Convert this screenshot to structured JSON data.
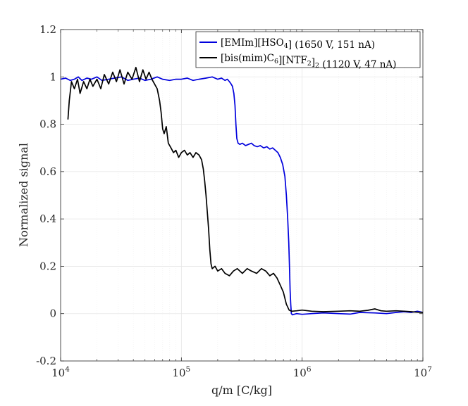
{
  "chart_data": {
    "type": "line",
    "xscale": "log",
    "xlim": [
      10000,
      10000000
    ],
    "ylim": [
      -0.2,
      1.2
    ],
    "grid": true,
    "legend_position": "top-right",
    "xlabel": "q/m [C/kg]",
    "ylabel": "Normalized signal",
    "x_ticks": [
      {
        "value": 10000,
        "base": "10",
        "exp": "4"
      },
      {
        "value": 100000,
        "base": "10",
        "exp": "5"
      },
      {
        "value": 1000000,
        "base": "10",
        "exp": "6"
      },
      {
        "value": 10000000,
        "base": "10",
        "exp": "7"
      }
    ],
    "y_ticks": [
      {
        "value": -0.2,
        "label": "-0.2"
      },
      {
        "value": 0,
        "label": "0"
      },
      {
        "value": 0.2,
        "label": "0.2"
      },
      {
        "value": 0.4,
        "label": "0.4"
      },
      {
        "value": 0.6,
        "label": "0.6"
      },
      {
        "value": 0.8,
        "label": "0.8"
      },
      {
        "value": 1,
        "label": "1"
      },
      {
        "value": 1.2,
        "label": "1.2"
      }
    ],
    "series": [
      {
        "name": "[EMIm][HSO4] (1650 V, 151 nA)",
        "legend_parts": [
          {
            "text": "[EMIm][HSO"
          },
          {
            "text": "4",
            "sub": true
          },
          {
            "text": "] (1650 V, 151 nA)"
          }
        ],
        "color": "#0000dd",
        "x": [
          10000,
          11000,
          12000,
          13000,
          14000,
          15000,
          16500,
          18000,
          20000,
          22000,
          25000,
          28000,
          32000,
          36000,
          40000,
          45000,
          50000,
          56000,
          63000,
          70000,
          80000,
          90000,
          100000,
          112000,
          125000,
          140000,
          160000,
          180000,
          200000,
          215000,
          230000,
          240000,
          250000,
          258000,
          265000,
          272000,
          278000,
          283000,
          288000,
          295000,
          305000,
          320000,
          340000,
          360000,
          380000,
          400000,
          425000,
          450000,
          480000,
          510000,
          540000,
          570000,
          600000,
          630000,
          660000,
          690000,
          720000,
          740000,
          760000,
          775000,
          785000,
          795000,
          805000,
          815000,
          830000,
          900000,
          1000000,
          1200000,
          1500000,
          2000000,
          2500000,
          3000000,
          4000000,
          5000000,
          6000000,
          7000000,
          8000000,
          9000000,
          10000000
        ],
        "y": [
          0.99,
          0.995,
          0.985,
          0.99,
          1.0,
          0.985,
          0.995,
          0.99,
          1.0,
          0.985,
          0.99,
          0.995,
          1.0,
          0.985,
          0.99,
          0.995,
          0.985,
          0.99,
          1.0,
          0.99,
          0.985,
          0.99,
          0.99,
          0.995,
          0.985,
          0.99,
          0.995,
          1.0,
          0.99,
          0.995,
          0.985,
          0.99,
          0.98,
          0.97,
          0.96,
          0.93,
          0.88,
          0.8,
          0.74,
          0.72,
          0.715,
          0.72,
          0.71,
          0.715,
          0.72,
          0.71,
          0.705,
          0.71,
          0.7,
          0.705,
          0.695,
          0.7,
          0.69,
          0.68,
          0.66,
          0.63,
          0.58,
          0.5,
          0.4,
          0.3,
          0.2,
          0.1,
          0.04,
          0.0,
          -0.005,
          0.0,
          -0.003,
          0.0,
          0.003,
          0.0,
          -0.002,
          0.005,
          0.003,
          0.0,
          0.005,
          0.008,
          0.005,
          0.01,
          0.005
        ]
      },
      {
        "name": "[bis(mim)C6][NTF2]2 (1120 V, 47 nA)",
        "legend_parts": [
          {
            "text": "[bis(mim)C"
          },
          {
            "text": "6",
            "sub": true
          },
          {
            "text": "][NTF"
          },
          {
            "text": "2",
            "sub": true
          },
          {
            "text": "]"
          },
          {
            "text": "2",
            "sub": true
          },
          {
            "text": " (1120 V, 47 nA)"
          }
        ],
        "color": "#000000",
        "x": [
          11500,
          11800,
          12300,
          13000,
          13800,
          14500,
          15500,
          16500,
          17500,
          18500,
          20000,
          21500,
          23000,
          25000,
          27000,
          29000,
          31000,
          33500,
          36000,
          39000,
          42000,
          45000,
          48000,
          51000,
          54000,
          57000,
          60000,
          63000,
          66000,
          68000,
          70000,
          72000,
          75000,
          78000,
          82000,
          86000,
          90000,
          95000,
          100000,
          106000,
          112000,
          118000,
          125000,
          132000,
          140000,
          147000,
          152000,
          156000,
          160000,
          164000,
          168000,
          172000,
          176000,
          180000,
          190000,
          200000,
          215000,
          230000,
          250000,
          270000,
          290000,
          320000,
          350000,
          380000,
          420000,
          460000,
          500000,
          540000,
          580000,
          620000,
          660000,
          700000,
          740000,
          780000,
          820000,
          900000,
          1000000,
          1200000,
          1500000,
          2000000,
          2500000,
          3000000,
          3500000,
          4000000,
          4500000,
          5000000,
          6000000,
          7000000,
          8000000,
          9000000,
          10000000
        ],
        "y": [
          0.82,
          0.9,
          0.98,
          0.95,
          0.99,
          0.93,
          0.98,
          0.95,
          0.99,
          0.96,
          0.99,
          0.95,
          1.01,
          0.97,
          1.02,
          0.98,
          1.03,
          0.97,
          1.02,
          0.99,
          1.04,
          0.98,
          1.03,
          0.99,
          1.02,
          0.99,
          0.97,
          0.95,
          0.9,
          0.85,
          0.78,
          0.76,
          0.79,
          0.72,
          0.7,
          0.68,
          0.69,
          0.66,
          0.68,
          0.69,
          0.67,
          0.68,
          0.66,
          0.68,
          0.67,
          0.65,
          0.61,
          0.56,
          0.5,
          0.43,
          0.36,
          0.27,
          0.21,
          0.19,
          0.2,
          0.18,
          0.19,
          0.17,
          0.16,
          0.18,
          0.19,
          0.17,
          0.19,
          0.18,
          0.17,
          0.19,
          0.18,
          0.16,
          0.17,
          0.15,
          0.12,
          0.09,
          0.04,
          0.015,
          0.01,
          0.012,
          0.015,
          0.01,
          0.008,
          0.01,
          0.012,
          0.01,
          0.014,
          0.02,
          0.012,
          0.01,
          0.012,
          0.01,
          0.008,
          0.006,
          0.005
        ]
      }
    ]
  }
}
